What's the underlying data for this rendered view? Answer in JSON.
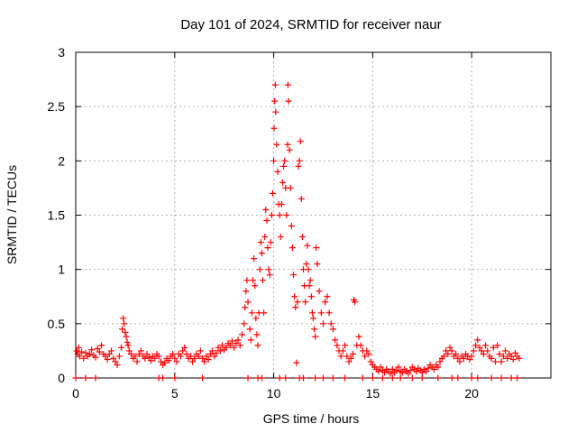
{
  "chart_data": {
    "type": "scatter",
    "title": "Day 101 of 2024, SRMTID for receiver naur",
    "xlabel": "GPS time / hours",
    "ylabel": "SRMTID / TECUs",
    "xlim": [
      0,
      24
    ],
    "ylim": [
      0,
      3
    ],
    "x_ticks": [
      {
        "value": 0,
        "label": "0"
      },
      {
        "value": 5,
        "label": "5"
      },
      {
        "value": 10,
        "label": "10"
      },
      {
        "value": 15,
        "label": "15"
      },
      {
        "value": 20,
        "label": "20"
      }
    ],
    "y_ticks": [
      {
        "value": 0,
        "label": "0"
      },
      {
        "value": 0.5,
        "label": "0.5"
      },
      {
        "value": 1,
        "label": "1"
      },
      {
        "value": 1.5,
        "label": "1.5"
      },
      {
        "value": 2,
        "label": "2"
      },
      {
        "value": 2.5,
        "label": "2.5"
      },
      {
        "value": 3,
        "label": "3"
      }
    ],
    "grid": true,
    "marker": "+",
    "color": "#ff0000",
    "series": [
      {
        "name": "SRMTID",
        "points": [
          [
            0.05,
            0.25
          ],
          [
            0.1,
            0.22
          ],
          [
            0.15,
            0.28
          ],
          [
            0.2,
            0.2
          ],
          [
            0.3,
            0.24
          ],
          [
            0.4,
            0.18
          ],
          [
            0.5,
            0.23
          ],
          [
            0.6,
            0.2
          ],
          [
            0.7,
            0.22
          ],
          [
            0.8,
            0.26
          ],
          [
            0.9,
            0.21
          ],
          [
            1.0,
            0.19
          ],
          [
            1.1,
            0.27
          ],
          [
            1.2,
            0.24
          ],
          [
            1.3,
            0.3
          ],
          [
            1.4,
            0.22
          ],
          [
            1.5,
            0.2
          ],
          [
            1.6,
            0.17
          ],
          [
            1.7,
            0.22
          ],
          [
            1.8,
            0.25
          ],
          [
            1.9,
            0.18
          ],
          [
            2.0,
            0.15
          ],
          [
            2.1,
            0.12
          ],
          [
            2.2,
            0.2
          ],
          [
            2.3,
            0.28
          ],
          [
            2.35,
            0.45
          ],
          [
            2.4,
            0.55
          ],
          [
            2.45,
            0.5
          ],
          [
            2.5,
            0.42
          ],
          [
            2.55,
            0.38
          ],
          [
            2.6,
            0.33
          ],
          [
            2.65,
            0.3
          ],
          [
            2.7,
            0.25
          ],
          [
            2.8,
            0.22
          ],
          [
            2.9,
            0.18
          ],
          [
            3.0,
            0.2
          ],
          [
            3.1,
            0.15
          ],
          [
            3.2,
            0.22
          ],
          [
            3.3,
            0.25
          ],
          [
            3.4,
            0.2
          ],
          [
            3.5,
            0.18
          ],
          [
            3.6,
            0.22
          ],
          [
            3.7,
            0.19
          ],
          [
            3.8,
            0.16
          ],
          [
            3.9,
            0.2
          ],
          [
            4.0,
            0.18
          ],
          [
            4.1,
            0.22
          ],
          [
            4.2,
            0.2
          ],
          [
            4.3,
            0.15
          ],
          [
            4.4,
            0.12
          ],
          [
            4.5,
            0.14
          ],
          [
            4.6,
            0.18
          ],
          [
            4.7,
            0.16
          ],
          [
            4.8,
            0.2
          ],
          [
            4.9,
            0.22
          ],
          [
            5.0,
            0.18
          ],
          [
            5.1,
            0.15
          ],
          [
            5.2,
            0.22
          ],
          [
            5.3,
            0.2
          ],
          [
            5.4,
            0.25
          ],
          [
            5.5,
            0.28
          ],
          [
            5.6,
            0.22
          ],
          [
            5.7,
            0.18
          ],
          [
            5.8,
            0.2
          ],
          [
            5.9,
            0.15
          ],
          [
            6.0,
            0.18
          ],
          [
            6.1,
            0.22
          ],
          [
            6.2,
            0.2
          ],
          [
            6.3,
            0.25
          ],
          [
            6.4,
            0.18
          ],
          [
            6.5,
            0.15
          ],
          [
            6.6,
            0.2
          ],
          [
            6.7,
            0.17
          ],
          [
            6.8,
            0.22
          ],
          [
            6.9,
            0.25
          ],
          [
            7.0,
            0.2
          ],
          [
            7.1,
            0.23
          ],
          [
            7.2,
            0.28
          ],
          [
            7.3,
            0.25
          ],
          [
            7.4,
            0.3
          ],
          [
            7.5,
            0.26
          ],
          [
            7.6,
            0.28
          ],
          [
            7.7,
            0.32
          ],
          [
            7.8,
            0.3
          ],
          [
            7.9,
            0.34
          ],
          [
            8.0,
            0.28
          ],
          [
            8.1,
            0.32
          ],
          [
            8.2,
            0.35
          ],
          [
            8.3,
            0.3
          ],
          [
            8.4,
            0.4
          ],
          [
            8.5,
            0.5
          ],
          [
            8.55,
            0.65
          ],
          [
            8.6,
            0.8
          ],
          [
            8.65,
            0.9
          ],
          [
            8.7,
            0.7
          ],
          [
            8.8,
            0.45
          ],
          [
            8.85,
            0.35
          ],
          [
            8.9,
            0.6
          ],
          [
            8.95,
            0.9
          ],
          [
            9.0,
            1.1
          ],
          [
            9.05,
            0.85
          ],
          [
            9.1,
            0.55
          ],
          [
            9.15,
            0.4
          ],
          [
            9.2,
            0.3
          ],
          [
            9.25,
            0.6
          ],
          [
            9.3,
            1.0
          ],
          [
            9.35,
            1.25
          ],
          [
            9.4,
            1.15
          ],
          [
            9.45,
            0.9
          ],
          [
            9.5,
            0.6
          ],
          [
            9.55,
            1.3
          ],
          [
            9.6,
            1.55
          ],
          [
            9.65,
            1.45
          ],
          [
            9.7,
            1.2
          ],
          [
            9.75,
            1.0
          ],
          [
            9.8,
            0.95
          ],
          [
            9.85,
            1.25
          ],
          [
            9.9,
            1.5
          ],
          [
            9.95,
            1.7
          ],
          [
            10.0,
            2.0
          ],
          [
            10.02,
            2.3
          ],
          [
            10.05,
            2.55
          ],
          [
            10.08,
            2.7
          ],
          [
            10.1,
            2.45
          ],
          [
            10.15,
            2.15
          ],
          [
            10.2,
            1.9
          ],
          [
            10.25,
            1.6
          ],
          [
            10.3,
            1.5
          ],
          [
            10.35,
            1.3
          ],
          [
            10.4,
            1.6
          ],
          [
            10.45,
            1.8
          ],
          [
            10.5,
            1.95
          ],
          [
            10.55,
            2.0
          ],
          [
            10.6,
            1.75
          ],
          [
            10.65,
            1.5
          ],
          [
            10.7,
            2.15
          ],
          [
            10.72,
            2.7
          ],
          [
            10.75,
            2.55
          ],
          [
            10.8,
            2.1
          ],
          [
            10.85,
            1.75
          ],
          [
            10.9,
            1.4
          ],
          [
            10.95,
            1.2
          ],
          [
            11.0,
            0.95
          ],
          [
            11.05,
            0.75
          ],
          [
            11.1,
            0.65
          ],
          [
            11.15,
            0.14
          ],
          [
            11.2,
            0.7
          ],
          [
            11.25,
            1.95
          ],
          [
            11.3,
            2.0
          ],
          [
            11.35,
            2.18
          ],
          [
            11.4,
            1.65
          ],
          [
            11.45,
            1.3
          ],
          [
            11.5,
            1.0
          ],
          [
            11.55,
            0.85
          ],
          [
            11.6,
            0.7
          ],
          [
            11.65,
            1.05
          ],
          [
            11.7,
            1.22
          ],
          [
            11.75,
            1.0
          ],
          [
            11.8,
            0.85
          ],
          [
            11.85,
            0.9
          ],
          [
            11.9,
            0.75
          ],
          [
            11.95,
            0.6
          ],
          [
            12.0,
            0.55
          ],
          [
            12.05,
            0.45
          ],
          [
            12.1,
            0.38
          ],
          [
            12.15,
            1.2
          ],
          [
            12.2,
            1.05
          ],
          [
            12.3,
            0.8
          ],
          [
            12.4,
            0.6
          ],
          [
            12.5,
            0.5
          ],
          [
            12.6,
            0.7
          ],
          [
            12.7,
            0.75
          ],
          [
            12.8,
            0.6
          ],
          [
            12.9,
            0.5
          ],
          [
            13.0,
            0.45
          ],
          [
            13.1,
            0.35
          ],
          [
            13.2,
            0.3
          ],
          [
            13.3,
            0.25
          ],
          [
            13.4,
            0.2
          ],
          [
            13.5,
            0.25
          ],
          [
            13.6,
            0.3
          ],
          [
            13.7,
            0.2
          ],
          [
            13.8,
            0.15
          ],
          [
            13.9,
            0.18
          ],
          [
            14.0,
            0.22
          ],
          [
            14.05,
            0.72
          ],
          [
            14.1,
            0.7
          ],
          [
            14.2,
            0.3
          ],
          [
            14.3,
            0.38
          ],
          [
            14.4,
            0.3
          ],
          [
            14.5,
            0.25
          ],
          [
            14.6,
            0.2
          ],
          [
            14.7,
            0.25
          ],
          [
            14.8,
            0.22
          ],
          [
            14.9,
            0.15
          ],
          [
            15.0,
            0.12
          ],
          [
            15.1,
            0.1
          ],
          [
            15.2,
            0.08
          ],
          [
            15.3,
            0.06
          ],
          [
            15.4,
            0.1
          ],
          [
            15.5,
            0.07
          ],
          [
            15.6,
            0.05
          ],
          [
            15.7,
            0.08
          ],
          [
            15.8,
            0.06
          ],
          [
            15.9,
            0.04
          ],
          [
            16.0,
            0.08
          ],
          [
            16.1,
            0.05
          ],
          [
            16.2,
            0.07
          ],
          [
            16.3,
            0.1
          ],
          [
            16.4,
            0.06
          ],
          [
            16.5,
            0.05
          ],
          [
            16.6,
            0.08
          ],
          [
            16.7,
            0.06
          ],
          [
            16.8,
            0.04
          ],
          [
            16.9,
            0.07
          ],
          [
            17.0,
            0.1
          ],
          [
            17.1,
            0.08
          ],
          [
            17.2,
            0.06
          ],
          [
            17.3,
            0.09
          ],
          [
            17.4,
            0.07
          ],
          [
            17.5,
            0.05
          ],
          [
            17.6,
            0.08
          ],
          [
            17.7,
            0.06
          ],
          [
            17.8,
            0.09
          ],
          [
            17.9,
            0.12
          ],
          [
            18.0,
            0.1
          ],
          [
            18.1,
            0.08
          ],
          [
            18.2,
            0.12
          ],
          [
            18.3,
            0.1
          ],
          [
            18.4,
            0.15
          ],
          [
            18.5,
            0.18
          ],
          [
            18.6,
            0.2
          ],
          [
            18.7,
            0.25
          ],
          [
            18.8,
            0.22
          ],
          [
            18.9,
            0.28
          ],
          [
            19.0,
            0.25
          ],
          [
            19.1,
            0.2
          ],
          [
            19.2,
            0.22
          ],
          [
            19.3,
            0.18
          ],
          [
            19.4,
            0.15
          ],
          [
            19.5,
            0.2
          ],
          [
            19.6,
            0.18
          ],
          [
            19.7,
            0.22
          ],
          [
            19.8,
            0.2
          ],
          [
            19.9,
            0.17
          ],
          [
            20.0,
            0.2
          ],
          [
            20.1,
            0.25
          ],
          [
            20.2,
            0.3
          ],
          [
            20.3,
            0.35
          ],
          [
            20.4,
            0.28
          ],
          [
            20.5,
            0.25
          ],
          [
            20.6,
            0.22
          ],
          [
            20.7,
            0.3
          ],
          [
            20.8,
            0.25
          ],
          [
            20.9,
            0.2
          ],
          [
            21.0,
            0.18
          ],
          [
            21.1,
            0.28
          ],
          [
            21.2,
            0.15
          ],
          [
            21.3,
            0.3
          ],
          [
            21.4,
            0.22
          ],
          [
            21.5,
            0.15
          ],
          [
            21.6,
            0.2
          ],
          [
            21.7,
            0.25
          ],
          [
            21.8,
            0.18
          ],
          [
            21.9,
            0.22
          ],
          [
            22.0,
            0.2
          ],
          [
            22.1,
            0.17
          ],
          [
            22.2,
            0.23
          ],
          [
            22.3,
            0.2
          ],
          [
            22.4,
            0.18
          ],
          [
            0.0,
            0.0
          ],
          [
            0.5,
            0.0
          ],
          [
            1.0,
            0.0
          ],
          [
            4.2,
            0.0
          ],
          [
            4.4,
            0.0
          ],
          [
            5.0,
            0.0
          ],
          [
            6.4,
            0.0
          ],
          [
            8.7,
            0.0
          ],
          [
            9.2,
            0.0
          ],
          [
            9.4,
            0.0
          ],
          [
            10.3,
            0.0
          ],
          [
            10.6,
            0.0
          ],
          [
            11.3,
            0.0
          ],
          [
            11.5,
            0.0
          ],
          [
            12.1,
            0.0
          ],
          [
            12.5,
            0.0
          ],
          [
            13.0,
            0.0
          ],
          [
            13.6,
            0.0
          ],
          [
            14.5,
            0.0
          ],
          [
            15.0,
            0.0
          ],
          [
            15.5,
            0.0
          ],
          [
            16.0,
            0.0
          ],
          [
            16.4,
            0.0
          ],
          [
            17.0,
            0.0
          ],
          [
            17.5,
            0.0
          ],
          [
            18.3,
            0.0
          ],
          [
            19.0,
            0.0
          ],
          [
            19.3,
            0.0
          ],
          [
            20.0,
            0.0
          ],
          [
            20.3,
            0.0
          ],
          [
            21.0,
            0.0
          ],
          [
            21.5,
            0.0
          ],
          [
            22.0,
            0.0
          ],
          [
            22.3,
            0.0
          ]
        ]
      }
    ]
  }
}
